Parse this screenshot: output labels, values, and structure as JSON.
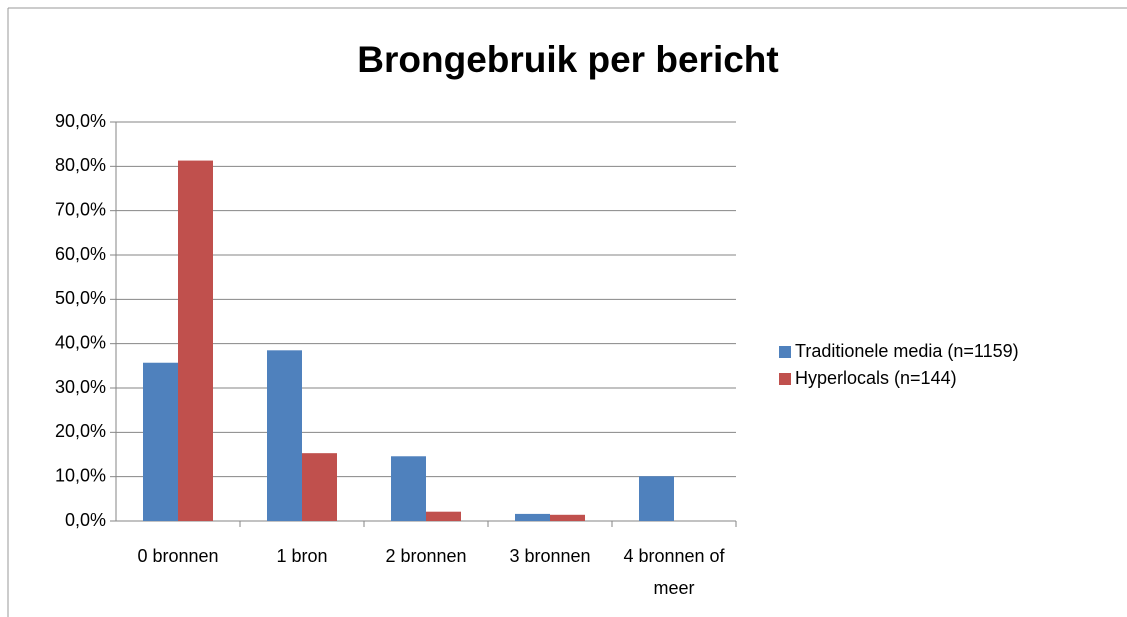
{
  "chart_data": {
    "type": "bar",
    "title": "Brongebruik per bericht",
    "categories": [
      "0 bronnen",
      "1 bron",
      "2 bronnen",
      "3 bronnen",
      "4 bronnen of meer"
    ],
    "series": [
      {
        "name": "Traditionele media (n=1159)",
        "color": "#4f81bd",
        "values": [
          35.7,
          38.5,
          14.6,
          1.6,
          10.1
        ]
      },
      {
        "name": "Hyperlocals (n=144)",
        "color": "#c0504d",
        "values": [
          81.3,
          15.3,
          2.1,
          1.4,
          0
        ]
      }
    ],
    "ylim": [
      0,
      90
    ],
    "yticks": [
      {
        "value": 0,
        "label": "0,0%"
      },
      {
        "value": 10,
        "label": "10,0%"
      },
      {
        "value": 20,
        "label": "20,0%"
      },
      {
        "value": 30,
        "label": "30,0%"
      },
      {
        "value": 40,
        "label": "40,0%"
      },
      {
        "value": 50,
        "label": "50,0%"
      },
      {
        "value": 60,
        "label": "60,0%"
      },
      {
        "value": 70,
        "label": "70,0%"
      },
      {
        "value": 80,
        "label": "80,0%"
      },
      {
        "value": 90,
        "label": "90,0%"
      }
    ],
    "grid": true,
    "legend": "right"
  }
}
